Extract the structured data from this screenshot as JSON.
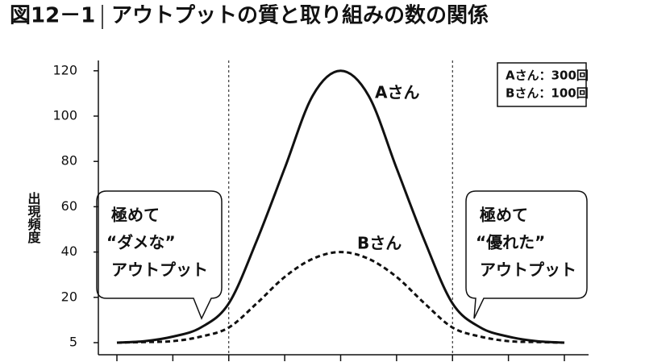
{
  "chart_data": {
    "type": "line",
    "figure_label": "図12－1",
    "title": "アウトプットの質と取り組みの数の関係",
    "y_label": "出現頻度",
    "x": [
      -4,
      -3.5,
      -3,
      -2.5,
      -2,
      -1.5,
      -1,
      -0.5,
      0,
      0.5,
      1,
      1.5,
      2,
      2.5,
      3,
      3.5,
      4
    ],
    "series": [
      {
        "name": "Aさん",
        "color": "#111111",
        "style": "solid",
        "values": [
          5,
          5.5,
          7,
          10,
          18,
          45,
          77,
          109,
          120,
          109,
          77,
          45,
          18,
          10,
          7,
          5.5,
          5
        ]
      },
      {
        "name": "Bさん",
        "color": "#111111",
        "style": "dashed",
        "values": [
          5,
          5.2,
          5.5,
          7,
          10,
          18,
          29,
          37,
          40,
          37,
          29,
          18,
          10,
          7,
          5.5,
          5.2,
          5
        ]
      }
    ],
    "xlim": [
      -4,
      4
    ],
    "xticks": [
      -4,
      -3,
      -2,
      -1,
      0,
      1,
      2,
      3,
      4
    ],
    "ylim": [
      5,
      120
    ],
    "yticks": [
      5,
      20,
      40,
      60,
      80,
      100,
      120
    ],
    "vlines": [
      -2,
      2
    ],
    "legend_box": [
      "Aさん：300回",
      "Bさん：100回"
    ],
    "callout_left": [
      "極めて",
      "“ダメな”",
      "アウトプット"
    ],
    "callout_right": [
      "極めて",
      "“優れた”",
      "アウトプット"
    ]
  }
}
